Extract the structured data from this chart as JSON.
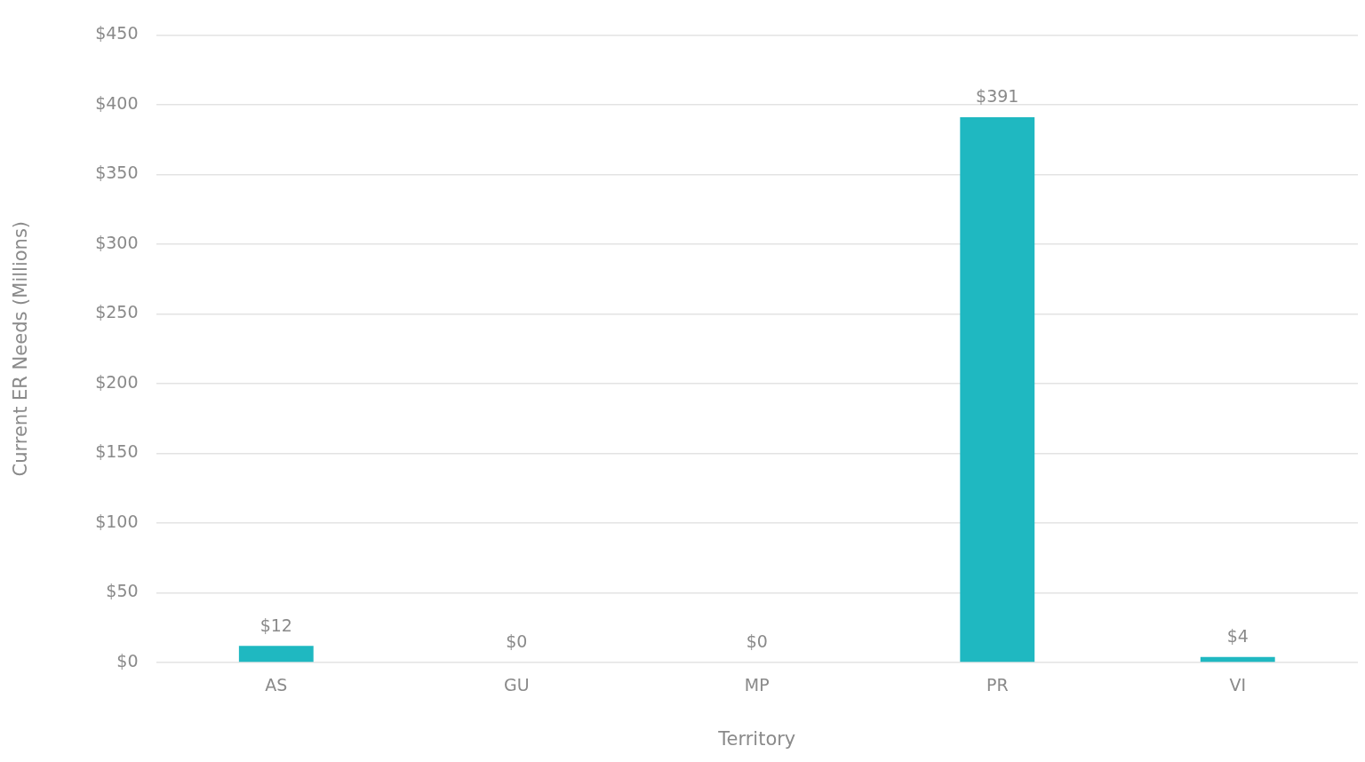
{
  "chart_data": {
    "type": "bar",
    "xlabel": "Territory",
    "ylabel": "Current ER Needs (Millions)",
    "categories": [
      "AS",
      "GU",
      "MP",
      "PR",
      "VI"
    ],
    "values": [
      12,
      0,
      0,
      391,
      4
    ],
    "value_labels": [
      "$12",
      "$0",
      "$0",
      "$391",
      "$4"
    ],
    "color": "#1fb8c1",
    "ylim": [
      0,
      450
    ],
    "yticks": [
      {
        "value": 0,
        "label": "$0"
      },
      {
        "value": 50,
        "label": "$50"
      },
      {
        "value": 100,
        "label": "$100"
      },
      {
        "value": 150,
        "label": "$150"
      },
      {
        "value": 200,
        "label": "$200"
      },
      {
        "value": 250,
        "label": "$250"
      },
      {
        "value": 300,
        "label": "$300"
      },
      {
        "value": 350,
        "label": "$350"
      },
      {
        "value": 400,
        "label": "$400"
      },
      {
        "value": 450,
        "label": "$450"
      }
    ],
    "grid": "y",
    "legend": false
  }
}
